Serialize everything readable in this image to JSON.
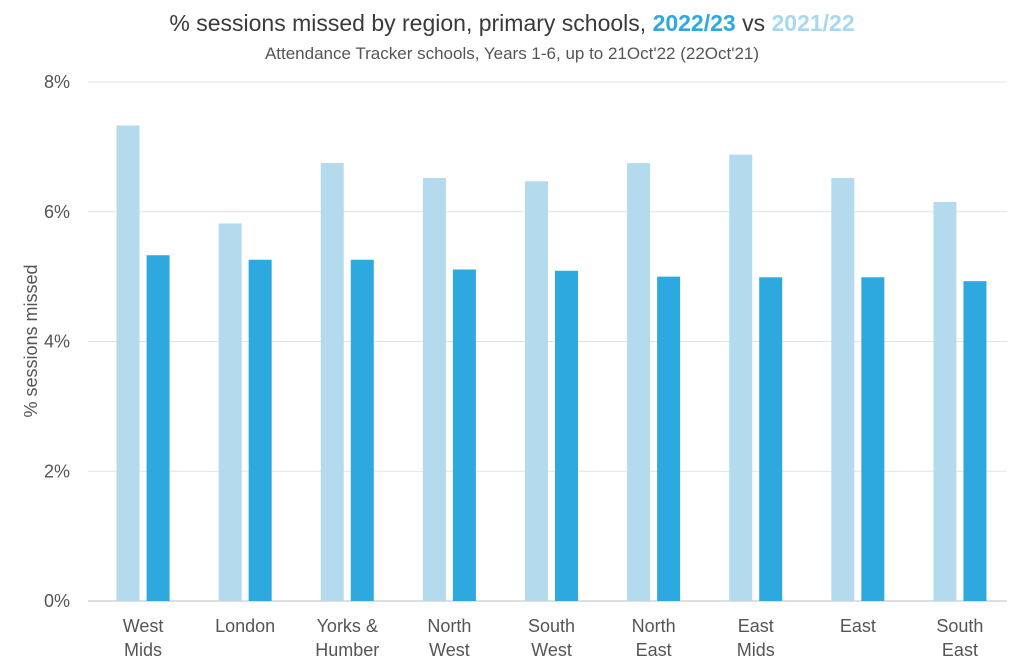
{
  "chart_data": {
    "type": "bar",
    "title": {
      "prefix": "% sessions missed by region, primary schools, ",
      "series_a": "2022/23",
      "joiner": " vs ",
      "series_b": "2021/22"
    },
    "subtitle": "Attendance Tracker schools, Years 1-6, up to 21Oct'22 (22Oct'21)",
    "ylabel": "% sessions missed",
    "xlabel": "",
    "ylim": [
      0,
      8
    ],
    "yticks": [
      "0%",
      "2%",
      "4%",
      "6%",
      "8%"
    ],
    "categories": [
      [
        "West",
        "Mids"
      ],
      [
        "London"
      ],
      [
        "Yorks &",
        "Humber"
      ],
      [
        "North",
        "West"
      ],
      [
        "South",
        "West"
      ],
      [
        "North",
        "East"
      ],
      [
        "East",
        "Mids"
      ],
      [
        "East"
      ],
      [
        "South",
        "East"
      ]
    ],
    "series": [
      {
        "name": "2021/22",
        "color": "#b3dbed",
        "values": [
          7.33,
          5.82,
          6.75,
          6.52,
          6.47,
          6.75,
          6.88,
          6.52,
          6.15
        ]
      },
      {
        "name": "2022/23",
        "color": "#2ea9e0",
        "values": [
          5.33,
          5.26,
          5.26,
          5.11,
          5.09,
          5.0,
          4.99,
          4.99,
          4.93
        ]
      }
    ],
    "grid": true,
    "legend": "title"
  }
}
